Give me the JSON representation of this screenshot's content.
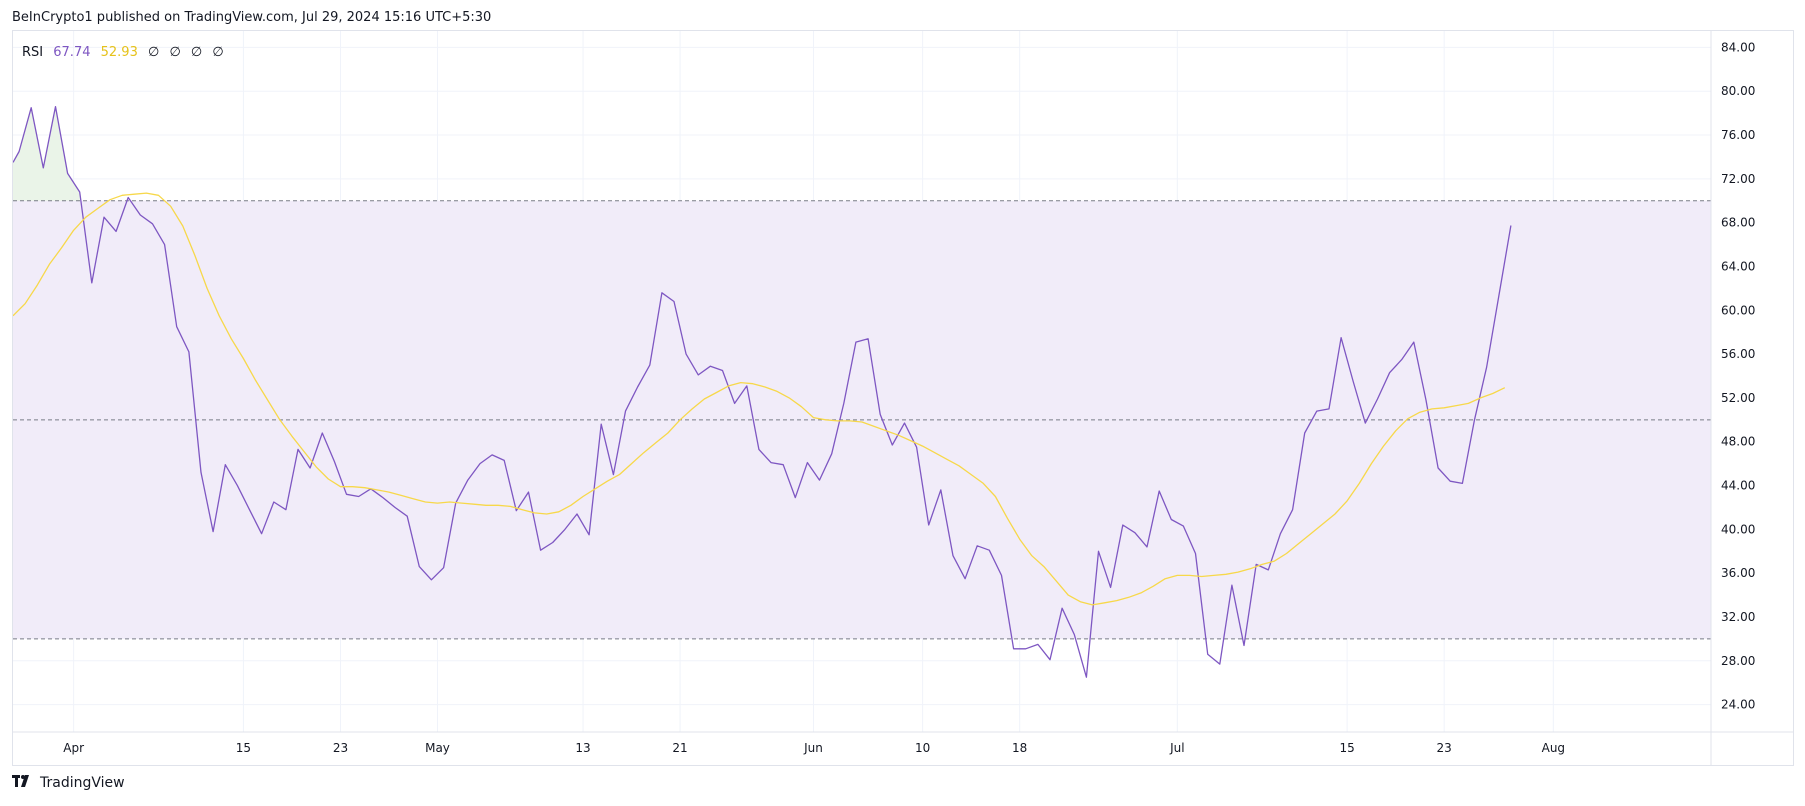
{
  "header": {
    "published_text": "BeInCrypto1 published on TradingView.com, Jul 29, 2024 15:16 UTC+5:30"
  },
  "legend": {
    "indicator": "RSI",
    "rsi_value": "67.74",
    "ma_value": "52.93",
    "extra": [
      "∅",
      "∅",
      "∅",
      "∅"
    ]
  },
  "footer": {
    "brand": "TradingView",
    "logo_icon": "tradingview-logo-icon"
  },
  "colors": {
    "rsi": "#7e57c2",
    "ma": "#f7d84a",
    "band_fill": "#f1ecf9",
    "overbought_fill": "#e8f3e6",
    "dash": "#787b86",
    "grid": "#f0f3fa",
    "axis_text": "#131722"
  },
  "chart_data": {
    "type": "line",
    "title": "",
    "ylim": [
      21.5,
      85.5
    ],
    "y_ticks": [
      "84.00",
      "80.00",
      "76.00",
      "72.00",
      "68.00",
      "64.00",
      "60.00",
      "56.00",
      "52.00",
      "48.00",
      "44.00",
      "40.00",
      "36.00",
      "32.00",
      "28.00",
      "24.00"
    ],
    "x_ticks": [
      {
        "label": "Apr",
        "day": 5
      },
      {
        "label": "15",
        "day": 19
      },
      {
        "label": "23",
        "day": 27
      },
      {
        "label": "May",
        "day": 35
      },
      {
        "label": "13",
        "day": 47
      },
      {
        "label": "21",
        "day": 55
      },
      {
        "label": "Jun",
        "day": 66
      },
      {
        "label": "10",
        "day": 75
      },
      {
        "label": "18",
        "day": 83
      },
      {
        "label": "Jul",
        "day": 96
      },
      {
        "label": "15",
        "day": 110
      },
      {
        "label": "23",
        "day": 118
      },
      {
        "label": "Aug",
        "day": 127
      }
    ],
    "x_range": [
      0,
      140
    ],
    "band": {
      "upper": 70,
      "middle": 50,
      "lower": 30
    },
    "series": [
      {
        "key": "rsi",
        "points": [
          [
            0,
            73.5
          ],
          [
            0.5,
            74.5
          ],
          [
            1.5,
            78.5
          ],
          [
            2.5,
            73
          ],
          [
            3.5,
            78.6
          ],
          [
            4.5,
            72.5
          ],
          [
            5.5,
            70.8
          ],
          [
            6.5,
            62.5
          ],
          [
            7.5,
            68.5
          ],
          [
            8.5,
            67.2
          ],
          [
            9.5,
            70.3
          ],
          [
            10.5,
            68.7
          ],
          [
            11.5,
            67.9
          ],
          [
            12.5,
            66
          ],
          [
            13.5,
            58.5
          ],
          [
            14.5,
            56.2
          ],
          [
            15.5,
            45.2
          ],
          [
            16.5,
            39.8
          ],
          [
            17.5,
            45.9
          ],
          [
            18.5,
            44
          ],
          [
            19.5,
            41.8
          ],
          [
            20.5,
            39.6
          ],
          [
            21.5,
            42.5
          ],
          [
            22.5,
            41.8
          ],
          [
            23.5,
            47.3
          ],
          [
            24.5,
            45.6
          ],
          [
            25.5,
            48.8
          ],
          [
            26.5,
            46.2
          ],
          [
            27.5,
            43.2
          ],
          [
            28.5,
            43
          ],
          [
            29.5,
            43.7
          ],
          [
            30.5,
            42.9
          ],
          [
            31.5,
            42
          ],
          [
            32.5,
            41.2
          ],
          [
            33.5,
            36.6
          ],
          [
            34.5,
            35.4
          ],
          [
            35.5,
            36.5
          ],
          [
            36.5,
            42.4
          ],
          [
            37.5,
            44.5
          ],
          [
            38.5,
            46
          ],
          [
            39.5,
            46.8
          ],
          [
            40.5,
            46.3
          ],
          [
            41.5,
            41.7
          ],
          [
            42.5,
            43.4
          ],
          [
            43.5,
            38.1
          ],
          [
            44.5,
            38.8
          ],
          [
            45.5,
            40
          ],
          [
            46.5,
            41.4
          ],
          [
            47.5,
            39.5
          ],
          [
            48.5,
            49.6
          ],
          [
            49.5,
            45
          ],
          [
            50.5,
            50.8
          ],
          [
            51.5,
            53
          ],
          [
            52.5,
            55
          ],
          [
            53.5,
            61.6
          ],
          [
            54.5,
            60.8
          ],
          [
            55.5,
            56
          ],
          [
            56.5,
            54.1
          ],
          [
            57.5,
            54.9
          ],
          [
            58.5,
            54.5
          ],
          [
            59.5,
            51.5
          ],
          [
            60.5,
            53.1
          ],
          [
            61.5,
            47.3
          ],
          [
            62.5,
            46.1
          ],
          [
            63.5,
            45.9
          ],
          [
            64.5,
            42.9
          ],
          [
            65.5,
            46.1
          ],
          [
            66.5,
            44.5
          ],
          [
            67.5,
            46.9
          ],
          [
            68.5,
            51.5
          ],
          [
            69.5,
            57.1
          ],
          [
            70.5,
            57.4
          ],
          [
            71.5,
            50.5
          ],
          [
            72.5,
            47.7
          ],
          [
            73.5,
            49.7
          ],
          [
            74.5,
            47.5
          ],
          [
            75.5,
            40.4
          ],
          [
            76.5,
            43.6
          ],
          [
            77.5,
            37.6
          ],
          [
            78.5,
            35.5
          ],
          [
            79.5,
            38.5
          ],
          [
            80.5,
            38.1
          ],
          [
            81.5,
            35.8
          ],
          [
            82.5,
            29.1
          ],
          [
            83.5,
            29.1
          ],
          [
            84.5,
            29.5
          ],
          [
            85.5,
            28.1
          ],
          [
            86.5,
            32.8
          ],
          [
            87.5,
            30.4
          ],
          [
            88.5,
            26.5
          ],
          [
            89.5,
            38
          ],
          [
            90.5,
            34.7
          ],
          [
            91.5,
            40.4
          ],
          [
            92.5,
            39.7
          ],
          [
            93.5,
            38.4
          ],
          [
            94.5,
            43.5
          ],
          [
            95.5,
            40.9
          ],
          [
            96.5,
            40.3
          ],
          [
            97.5,
            37.8
          ],
          [
            98.5,
            28.6
          ],
          [
            99.5,
            27.7
          ],
          [
            100.5,
            34.9
          ],
          [
            101.5,
            29.4
          ],
          [
            102.5,
            36.8
          ],
          [
            103.5,
            36.3
          ],
          [
            104.5,
            39.6
          ],
          [
            105.5,
            41.8
          ],
          [
            106.5,
            48.8
          ],
          [
            107.5,
            50.8
          ],
          [
            108.5,
            51
          ],
          [
            109.5,
            57.5
          ],
          [
            110.5,
            53.5
          ],
          [
            111.5,
            49.7
          ],
          [
            112.5,
            51.9
          ],
          [
            113.5,
            54.3
          ],
          [
            114.5,
            55.5
          ],
          [
            115.5,
            57.1
          ],
          [
            116.5,
            51.8
          ],
          [
            117.5,
            45.6
          ],
          [
            118.5,
            44.4
          ],
          [
            119.5,
            44.2
          ],
          [
            120.5,
            50
          ],
          [
            121.5,
            54.8
          ],
          [
            122.5,
            61.3
          ],
          [
            123.5,
            67.74
          ]
        ]
      },
      {
        "key": "ma",
        "points": [
          [
            0,
            59.5
          ],
          [
            1,
            60.6
          ],
          [
            2,
            62.3
          ],
          [
            3,
            64.2
          ],
          [
            4,
            65.7
          ],
          [
            5,
            67.3
          ],
          [
            6,
            68.5
          ],
          [
            7,
            69.3
          ],
          [
            8,
            70.1
          ],
          [
            9,
            70.5
          ],
          [
            10,
            70.6
          ],
          [
            11,
            70.7
          ],
          [
            12,
            70.5
          ],
          [
            13,
            69.5
          ],
          [
            14,
            67.7
          ],
          [
            15,
            65
          ],
          [
            16,
            62
          ],
          [
            17,
            59.5
          ],
          [
            18,
            57.4
          ],
          [
            19,
            55.6
          ],
          [
            20,
            53.6
          ],
          [
            21,
            51.8
          ],
          [
            22,
            50
          ],
          [
            23,
            48.5
          ],
          [
            24,
            47.1
          ],
          [
            25,
            45.7
          ],
          [
            26,
            44.6
          ],
          [
            27,
            43.9
          ],
          [
            28,
            43.9
          ],
          [
            29,
            43.8
          ],
          [
            30,
            43.6
          ],
          [
            31,
            43.4
          ],
          [
            32,
            43.1
          ],
          [
            33,
            42.8
          ],
          [
            34,
            42.5
          ],
          [
            35,
            42.4
          ],
          [
            36,
            42.5
          ],
          [
            37,
            42.4
          ],
          [
            38,
            42.3
          ],
          [
            39,
            42.2
          ],
          [
            40,
            42.2
          ],
          [
            41,
            42.1
          ],
          [
            42,
            41.8
          ],
          [
            43,
            41.5
          ],
          [
            44,
            41.4
          ],
          [
            45,
            41.6
          ],
          [
            46,
            42.2
          ],
          [
            47,
            43
          ],
          [
            48,
            43.7
          ],
          [
            49,
            44.4
          ],
          [
            50,
            45
          ],
          [
            51,
            46
          ],
          [
            52,
            47
          ],
          [
            53,
            47.9
          ],
          [
            54,
            48.8
          ],
          [
            55,
            50
          ],
          [
            56,
            51
          ],
          [
            57,
            51.9
          ],
          [
            58,
            52.5
          ],
          [
            59,
            53.1
          ],
          [
            60,
            53.4
          ],
          [
            61,
            53.3
          ],
          [
            62,
            53
          ],
          [
            63,
            52.6
          ],
          [
            64,
            52
          ],
          [
            65,
            51.2
          ],
          [
            66,
            50.2
          ],
          [
            67,
            50
          ],
          [
            68,
            49.9
          ],
          [
            69,
            49.9
          ],
          [
            70,
            49.8
          ],
          [
            71,
            49.4
          ],
          [
            72,
            49
          ],
          [
            73,
            48.6
          ],
          [
            74,
            48.1
          ],
          [
            75,
            47.6
          ],
          [
            76,
            47
          ],
          [
            77,
            46.4
          ],
          [
            78,
            45.8
          ],
          [
            79,
            45
          ],
          [
            80,
            44.2
          ],
          [
            81,
            43
          ],
          [
            82,
            41
          ],
          [
            83,
            39.1
          ],
          [
            84,
            37.6
          ],
          [
            85,
            36.6
          ],
          [
            86,
            35.3
          ],
          [
            87,
            34
          ],
          [
            88,
            33.4
          ],
          [
            89,
            33.1
          ],
          [
            90,
            33.3
          ],
          [
            91,
            33.5
          ],
          [
            92,
            33.8
          ],
          [
            93,
            34.2
          ],
          [
            94,
            34.8
          ],
          [
            95,
            35.5
          ],
          [
            96,
            35.8
          ],
          [
            97,
            35.8
          ],
          [
            98,
            35.7
          ],
          [
            99,
            35.8
          ],
          [
            100,
            35.9
          ],
          [
            101,
            36.1
          ],
          [
            102,
            36.4
          ],
          [
            103,
            36.8
          ],
          [
            104,
            37.1
          ],
          [
            105,
            37.8
          ],
          [
            106,
            38.7
          ],
          [
            107,
            39.6
          ],
          [
            108,
            40.5
          ],
          [
            109,
            41.4
          ],
          [
            110,
            42.6
          ],
          [
            111,
            44.2
          ],
          [
            112,
            46
          ],
          [
            113,
            47.6
          ],
          [
            114,
            49
          ],
          [
            115,
            50.1
          ],
          [
            116,
            50.7
          ],
          [
            117,
            51
          ],
          [
            118,
            51.1
          ],
          [
            119,
            51.3
          ],
          [
            120,
            51.5
          ],
          [
            121,
            52
          ],
          [
            122,
            52.4
          ],
          [
            123,
            52.93
          ]
        ]
      }
    ]
  }
}
